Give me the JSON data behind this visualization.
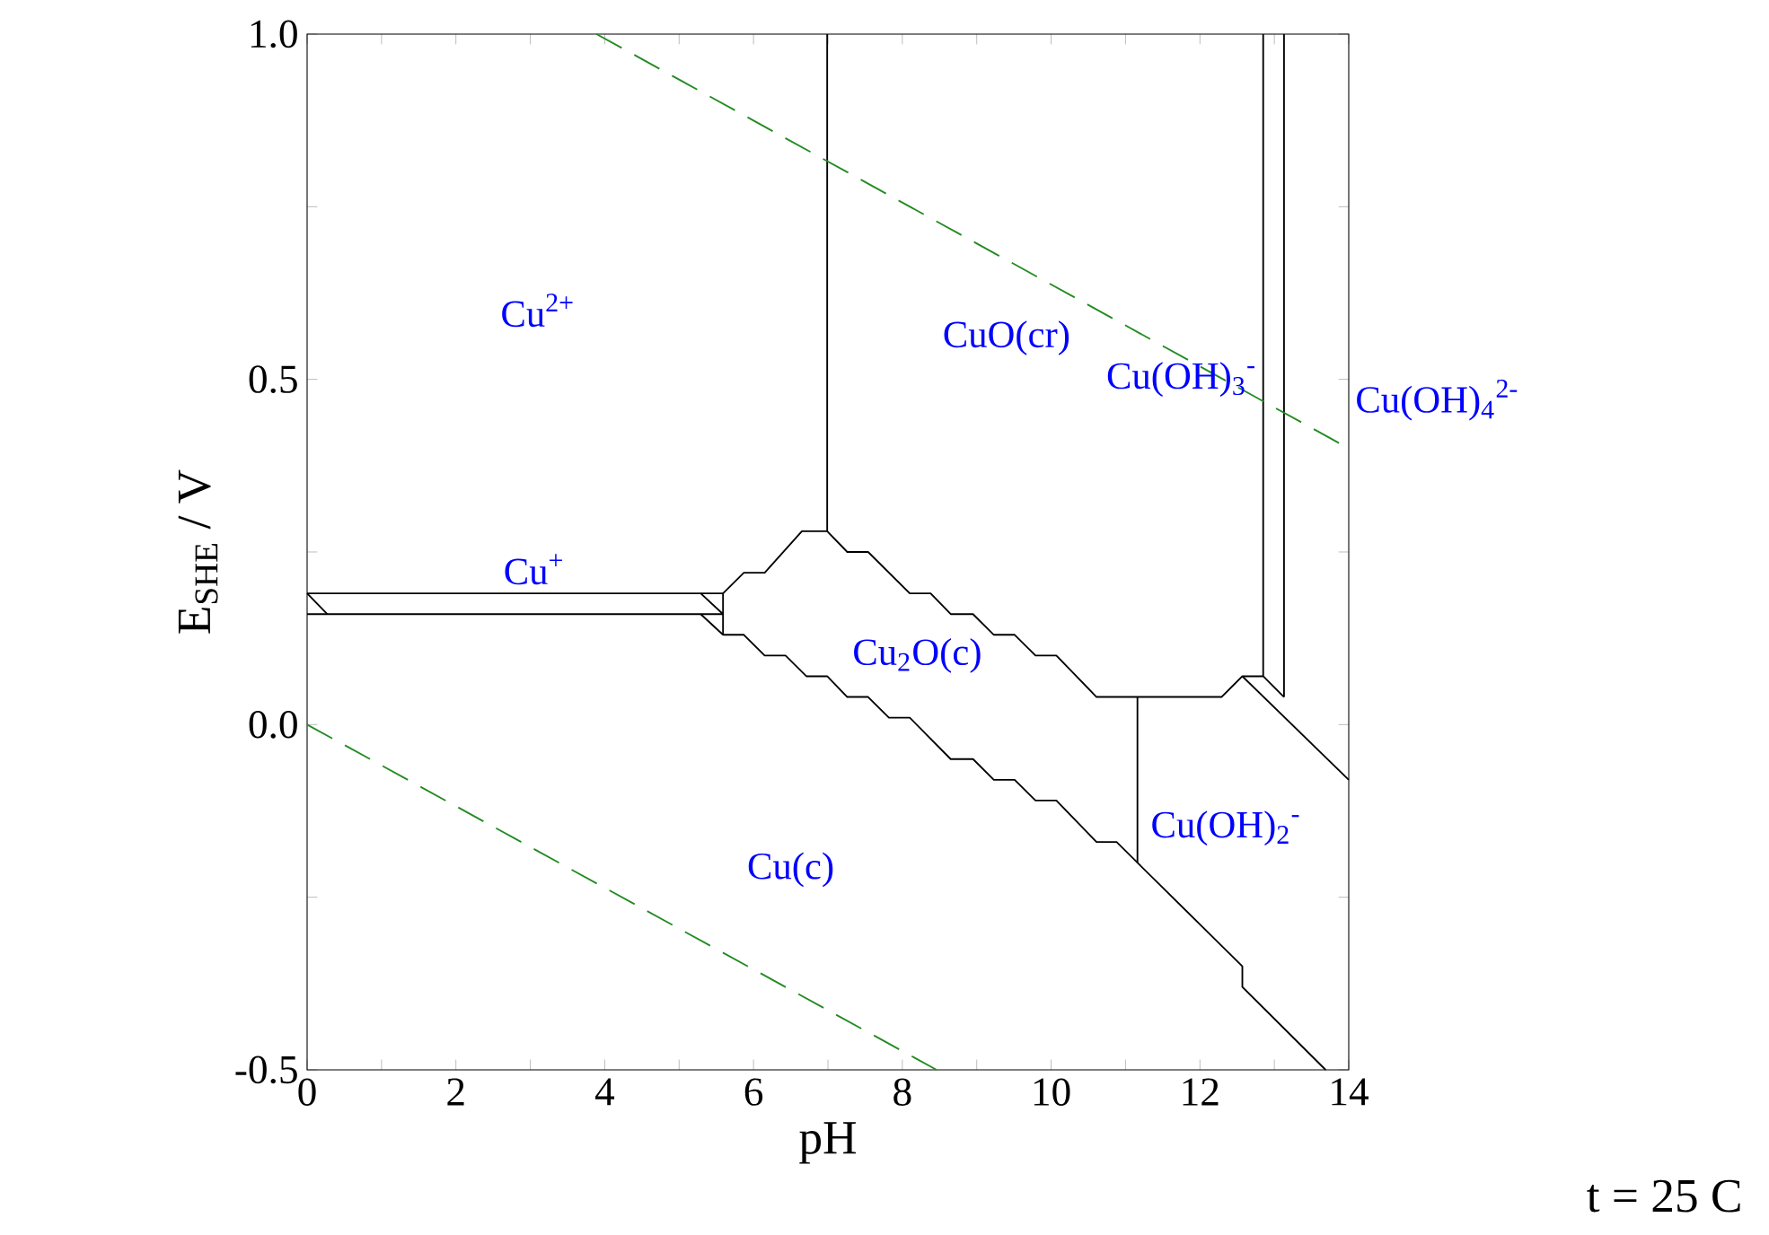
{
  "chart_data": {
    "type": "line",
    "xlabel": "pH",
    "ylabel": "E$_{SHE}$ / V",
    "xlim": [
      0,
      14
    ],
    "ylim": [
      -0.5,
      1.0
    ],
    "xticks": [
      0,
      {
        "value": 1,
        "label": null
      },
      2,
      {
        "value": 3,
        "label": null
      },
      4,
      {
        "value": 5,
        "label": null
      },
      6,
      {
        "value": 7,
        "label": null
      },
      8,
      {
        "value": 9,
        "label": null
      },
      10,
      {
        "value": 11,
        "label": null
      },
      12,
      {
        "value": 13,
        "label": null
      },
      14
    ],
    "yticks": [
      {
        "value": -0.5,
        "label": "-0.5"
      },
      {
        "value": -0.25,
        "label": null
      },
      {
        "value": 0,
        "label": "0.0"
      },
      {
        "value": 0.25,
        "label": null
      },
      {
        "value": 0.5,
        "label": "0.5"
      },
      {
        "value": 0.75,
        "label": null
      },
      {
        "value": 1.0,
        "label": "1.0"
      }
    ],
    "grid": false,
    "marker": "none",
    "series": [
      {
        "color": "#000000",
        "x": [
          0,
          5.59
        ],
        "values": [
          0.19,
          0.19
        ]
      },
      {
        "color": "#000000",
        "x": [
          0,
          5.59
        ],
        "values": [
          0.16,
          0.16
        ]
      },
      {
        "color": "#000000",
        "x": [
          0,
          0.27
        ],
        "values": [
          0.19,
          0.16
        ]
      },
      {
        "color": "#000000",
        "x": [
          5.29,
          5.59
        ],
        "values": [
          0.19,
          0.16
        ]
      },
      {
        "color": "#000000",
        "x": [
          5.29,
          5.59
        ],
        "values": [
          0.16,
          0.13
        ]
      },
      {
        "color": "#000000",
        "x": [
          5.59,
          5.59
        ],
        "values": [
          0.19,
          0.13
        ]
      },
      {
        "color": "#000000",
        "x": [
          5.59,
          5.87,
          6.15,
          6.65,
          6.99,
          7.26,
          7.54,
          8.1,
          8.38,
          8.65,
          8.95,
          9.23,
          9.51,
          9.79,
          10.07,
          10.61,
          12.29,
          12.57,
          12.85,
          13.13
        ],
        "values": [
          0.19,
          0.22,
          0.22,
          0.28,
          0.28,
          0.25,
          0.25,
          0.19,
          0.19,
          0.16,
          0.16,
          0.13,
          0.13,
          0.1,
          0.1,
          0.04,
          0.04,
          0.07,
          0.07,
          0.04
        ]
      },
      {
        "color": "#000000",
        "x": [
          6.99,
          6.99
        ],
        "values": [
          0.28,
          1.0
        ]
      },
      {
        "color": "#000000",
        "x": [
          12.85,
          12.85
        ],
        "values": [
          0.07,
          1.0
        ]
      },
      {
        "color": "#000000",
        "x": [
          13.13,
          13.13
        ],
        "values": [
          0.04,
          1.0
        ]
      },
      {
        "color": "#000000",
        "x": [
          12.57,
          14
        ],
        "values": [
          0.07,
          -0.08
        ]
      },
      {
        "color": "#000000",
        "x": [
          5.59,
          5.87,
          6.15,
          6.43,
          6.71,
          6.99,
          7.26,
          7.54,
          7.82,
          8.1,
          8.65,
          8.95,
          9.23,
          9.51,
          9.79,
          10.07,
          10.61,
          10.88,
          11.16,
          12.57,
          12.57,
          13.69
        ],
        "values": [
          0.13,
          0.13,
          0.1,
          0.1,
          0.07,
          0.07,
          0.04,
          0.04,
          0.01,
          0.01,
          -0.05,
          -0.05,
          -0.08,
          -0.08,
          -0.11,
          -0.11,
          -0.17,
          -0.17,
          -0.2,
          -0.35,
          -0.38,
          -0.5
        ]
      },
      {
        "color": "#000000",
        "x": [
          11.16,
          11.16
        ],
        "values": [
          0.04,
          -0.2
        ]
      },
      {
        "color": "#228b22",
        "line_style": "dashed",
        "x": [
          3.89,
          14
        ],
        "values": [
          1.0,
          0.4
        ]
      },
      {
        "color": "#228b22",
        "line_style": "dashed",
        "x": [
          0,
          8.46
        ],
        "values": [
          0,
          -0.5
        ]
      }
    ],
    "annotations": [
      "Cu$^{2+}$",
      "Cu$^{+}$",
      "Cu$_{2}$O(c)",
      "Cu(c)",
      "CuO(cr)",
      "Cu(OH)$_{3}$$^{-}$",
      "Cu(OH)$_{4}$$^{2-}$",
      "Cu(OH)$_{2}$$^{-}$",
      "t = 25 C"
    ]
  }
}
